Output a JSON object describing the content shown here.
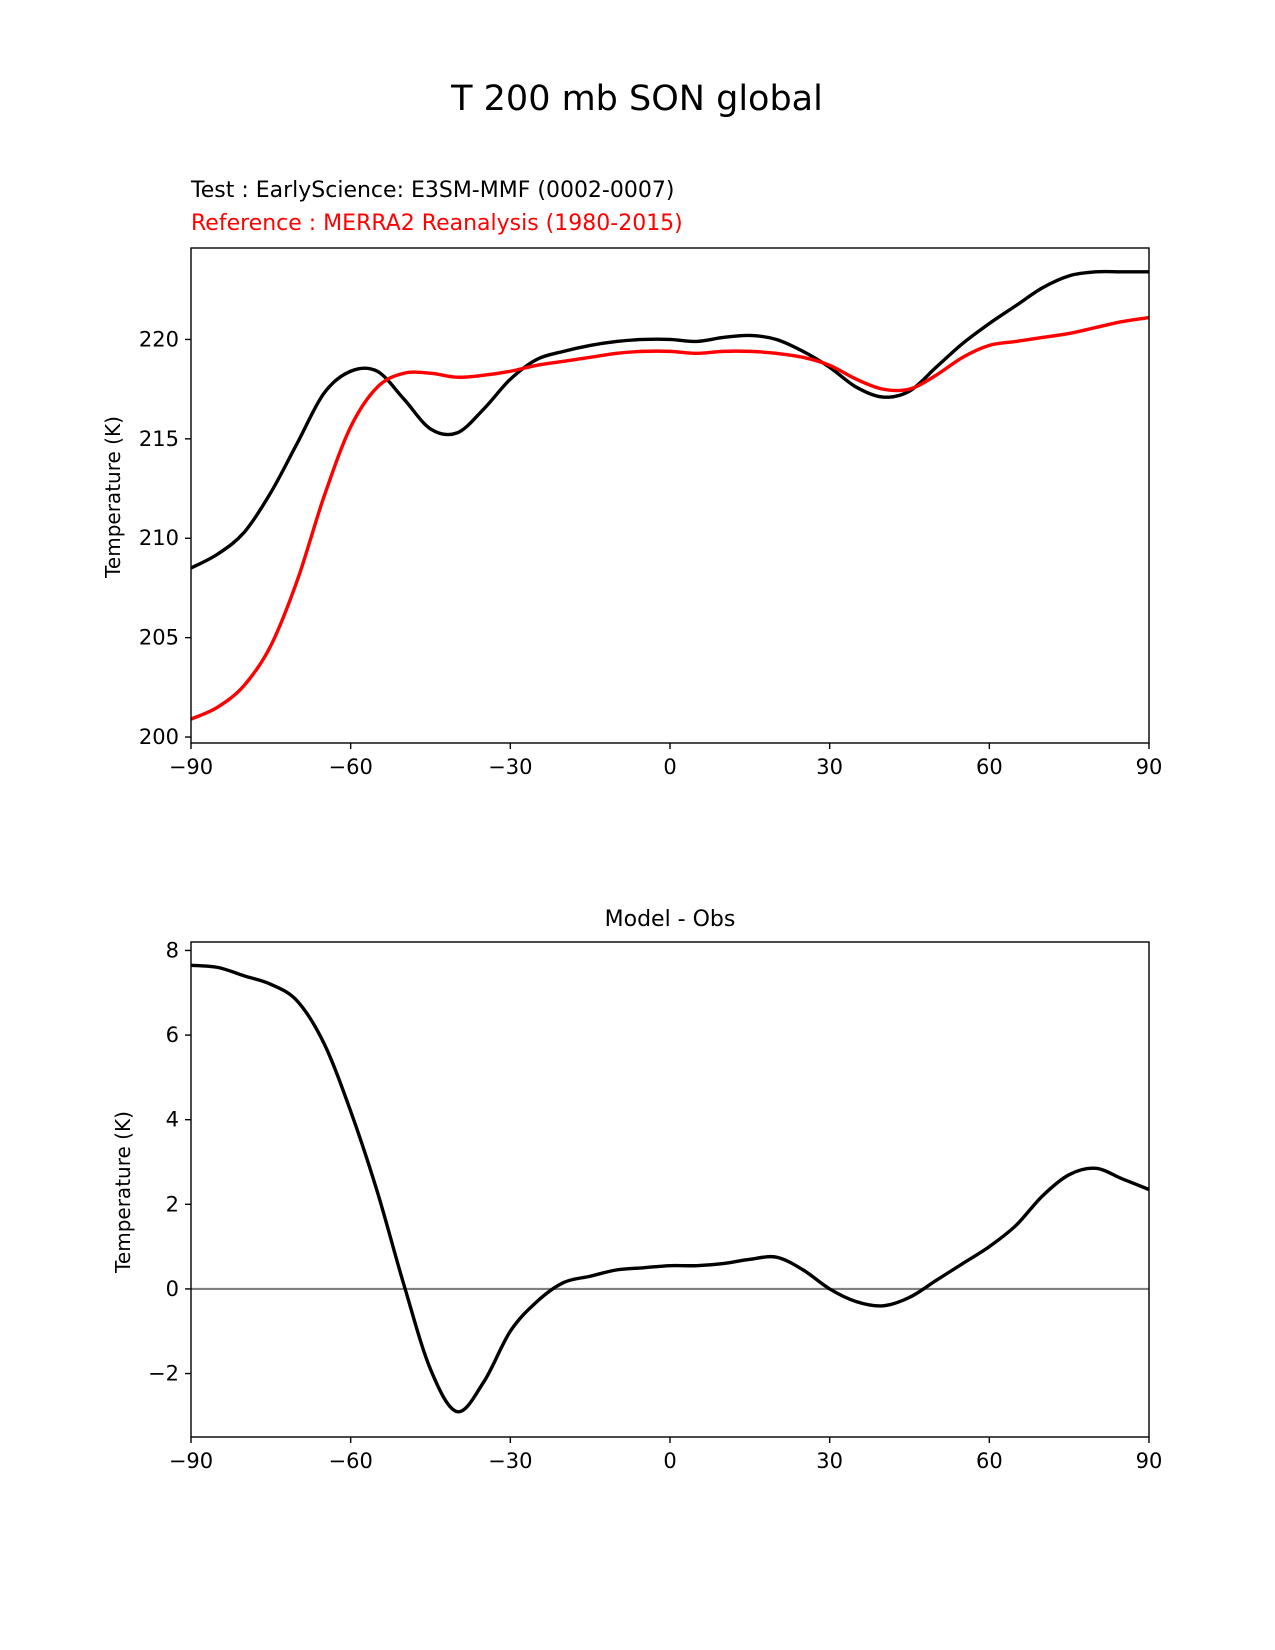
{
  "figure": {
    "title": "T 200 mb SON global"
  },
  "chart_data": [
    {
      "type": "line",
      "test_label": "Test : EarlyScience: E3SM-MMF (0002-0007)",
      "reference_label": "Reference : MERRA2 Reanalysis (1980-2015)",
      "xlabel": "",
      "ylabel": "Temperature (K)",
      "xlim": [
        -90,
        90
      ],
      "ylim": [
        199.7,
        224.6
      ],
      "xticks": [
        -90,
        -60,
        -30,
        0,
        30,
        60,
        90
      ],
      "xtick_labels": [
        "−90",
        "−60",
        "−30",
        "0",
        "30",
        "60",
        "90"
      ],
      "yticks": [
        200,
        205,
        210,
        215,
        220
      ],
      "ytick_labels": [
        "200",
        "205",
        "210",
        "215",
        "220"
      ],
      "series": [
        {
          "name": "Test",
          "color": "#000000",
          "x": [
            -90,
            -85,
            -80,
            -75,
            -70,
            -65,
            -60,
            -55,
            -50,
            -45,
            -40,
            -35,
            -30,
            -25,
            -20,
            -15,
            -10,
            -5,
            0,
            5,
            10,
            15,
            20,
            25,
            30,
            35,
            40,
            45,
            50,
            55,
            60,
            65,
            70,
            75,
            80,
            85,
            90
          ],
          "y": [
            208.5,
            209.2,
            210.3,
            212.3,
            214.8,
            217.3,
            218.4,
            218.4,
            217.0,
            215.5,
            215.3,
            216.5,
            218.0,
            219.0,
            219.4,
            219.7,
            219.9,
            220.0,
            220.0,
            219.9,
            220.1,
            220.2,
            220.0,
            219.4,
            218.6,
            217.6,
            217.1,
            217.4,
            218.6,
            219.8,
            220.8,
            221.7,
            222.6,
            223.2,
            223.4,
            223.4,
            223.4
          ]
        },
        {
          "name": "Reference",
          "color": "#ff0000",
          "x": [
            -90,
            -85,
            -80,
            -75,
            -70,
            -65,
            -60,
            -55,
            -50,
            -45,
            -40,
            -35,
            -30,
            -25,
            -20,
            -15,
            -10,
            -5,
            0,
            5,
            10,
            15,
            20,
            25,
            30,
            35,
            40,
            45,
            50,
            55,
            60,
            65,
            70,
            75,
            80,
            85,
            90
          ],
          "y": [
            200.9,
            201.5,
            202.6,
            204.6,
            207.9,
            212.1,
            215.6,
            217.6,
            218.3,
            218.3,
            218.1,
            218.2,
            218.4,
            218.7,
            218.9,
            219.1,
            219.3,
            219.4,
            219.4,
            219.3,
            219.4,
            219.4,
            219.3,
            219.1,
            218.7,
            218.0,
            217.5,
            217.5,
            218.2,
            219.1,
            219.7,
            219.9,
            220.1,
            220.3,
            220.6,
            220.9,
            221.1
          ]
        }
      ]
    },
    {
      "type": "line",
      "title": "Model - Obs",
      "xlabel": "",
      "ylabel": "Temperature (K)",
      "xlim": [
        -90,
        90
      ],
      "ylim": [
        -3.5,
        8.2
      ],
      "xticks": [
        -90,
        -60,
        -30,
        0,
        30,
        60,
        90
      ],
      "xtick_labels": [
        "−90",
        "−60",
        "−30",
        "0",
        "30",
        "60",
        "90"
      ],
      "yticks": [
        -2,
        0,
        2,
        4,
        6,
        8
      ],
      "ytick_labels": [
        "−2",
        "0",
        "2",
        "4",
        "6",
        "8"
      ],
      "zero_line": {
        "y": 0,
        "color": "#808080"
      },
      "series": [
        {
          "name": "Model - Obs",
          "color": "#000000",
          "x": [
            -90,
            -85,
            -80,
            -75,
            -70,
            -65,
            -60,
            -55,
            -50,
            -45,
            -40,
            -35,
            -30,
            -25,
            -20,
            -15,
            -10,
            -5,
            0,
            5,
            10,
            15,
            20,
            25,
            30,
            35,
            40,
            45,
            50,
            55,
            60,
            65,
            70,
            75,
            80,
            85,
            90
          ],
          "y": [
            7.65,
            7.6,
            7.4,
            7.2,
            6.8,
            5.8,
            4.2,
            2.3,
            0.1,
            -1.9,
            -2.9,
            -2.2,
            -1.0,
            -0.3,
            0.15,
            0.3,
            0.45,
            0.5,
            0.55,
            0.55,
            0.6,
            0.7,
            0.75,
            0.45,
            0.0,
            -0.3,
            -0.4,
            -0.2,
            0.2,
            0.6,
            1.0,
            1.5,
            2.2,
            2.7,
            2.85,
            2.6,
            2.35
          ]
        }
      ]
    }
  ]
}
